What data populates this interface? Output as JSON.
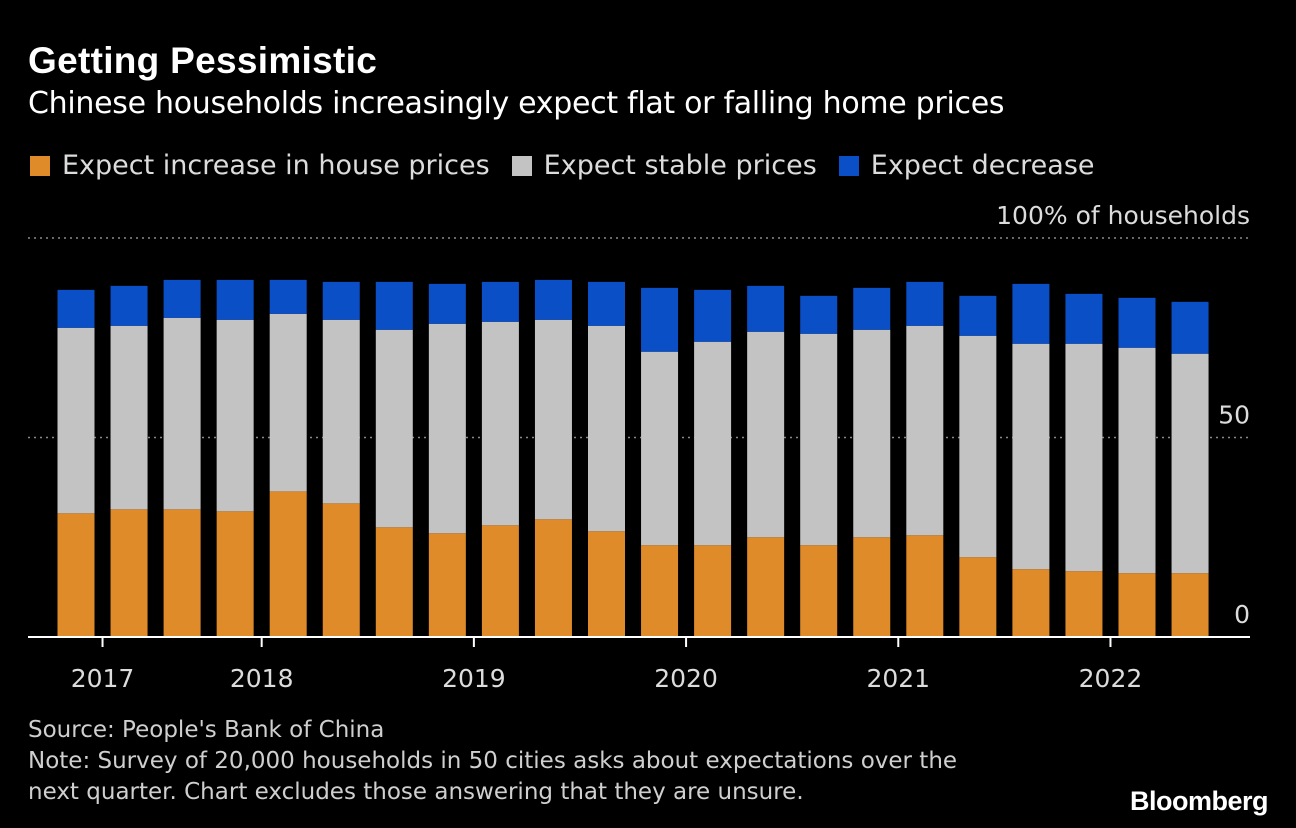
{
  "header": {
    "title": "Getting Pessimistic",
    "subtitle": "Chinese households increasingly expect flat or falling home prices"
  },
  "legend": [
    {
      "label": "Expect increase in house prices",
      "color": "#e08b29"
    },
    {
      "label": "Expect stable prices",
      "color": "#c3c3c3"
    },
    {
      "label": "Expect decrease",
      "color": "#0a4fc5"
    }
  ],
  "chart_data": {
    "type": "bar",
    "stacked": true,
    "title": "Getting Pessimistic",
    "subtitle": "Chinese households increasingly expect flat or falling home prices",
    "y_unit_label": "100% of households",
    "ylim": [
      0,
      100
    ],
    "y_ticks": [
      {
        "value": 0,
        "label": "0"
      },
      {
        "value": 50,
        "label": "50"
      },
      {
        "value": 100,
        "label": "100% of households"
      }
    ],
    "x_tick_labels": [
      "2017",
      "2018",
      "2019",
      "2020",
      "2021",
      "2022"
    ],
    "x_tick_positions": [
      0.5,
      3.5,
      7.5,
      11.5,
      15.5,
      19.5
    ],
    "grid": true,
    "legend_position": "top",
    "categories": [
      "Q1 2017",
      "Q2 2017",
      "Q3 2017",
      "Q4 2017",
      "Q1 2018",
      "Q2 2018",
      "Q3 2018",
      "Q4 2018",
      "Q1 2019",
      "Q2 2019",
      "Q3 2019",
      "Q4 2019",
      "Q1 2020",
      "Q2 2020",
      "Q3 2020",
      "Q4 2020",
      "Q1 2021",
      "Q2 2021",
      "Q3 2021",
      "Q4 2021",
      "Q1 2022",
      "Q2 2022"
    ],
    "series": [
      {
        "name": "Expect increase in house prices",
        "color": "#e08b29",
        "values": [
          31,
          32,
          32,
          31.5,
          36.5,
          33.5,
          27.5,
          26,
          28,
          29.5,
          26.5,
          23,
          23,
          25,
          23,
          25,
          25.5,
          20,
          17,
          16.5,
          16,
          16
        ]
      },
      {
        "name": "Expect stable prices",
        "color": "#c3c3c3",
        "values": [
          46.5,
          46,
          48,
          48,
          44.5,
          46,
          49.5,
          52.5,
          51,
          50,
          51.5,
          48.5,
          51,
          51.5,
          53,
          52,
          52.5,
          55.5,
          56.5,
          57,
          56.5,
          55
        ]
      },
      {
        "name": "Expect decrease",
        "color": "#0a4fc5",
        "values": [
          9.5,
          10,
          9.5,
          10,
          8.5,
          9.5,
          12,
          10,
          10,
          10,
          11,
          16,
          13,
          11.5,
          9.5,
          10.5,
          11,
          10,
          15,
          12.5,
          12.5,
          13
        ]
      }
    ]
  },
  "footer": {
    "source": "Source: People's Bank of China",
    "note_line1": "Note: Survey of 20,000 households in 50 cities asks about expectations over the",
    "note_line2": "next quarter. Chart excludes those answering that they are unsure.",
    "logo": "Bloomberg"
  }
}
